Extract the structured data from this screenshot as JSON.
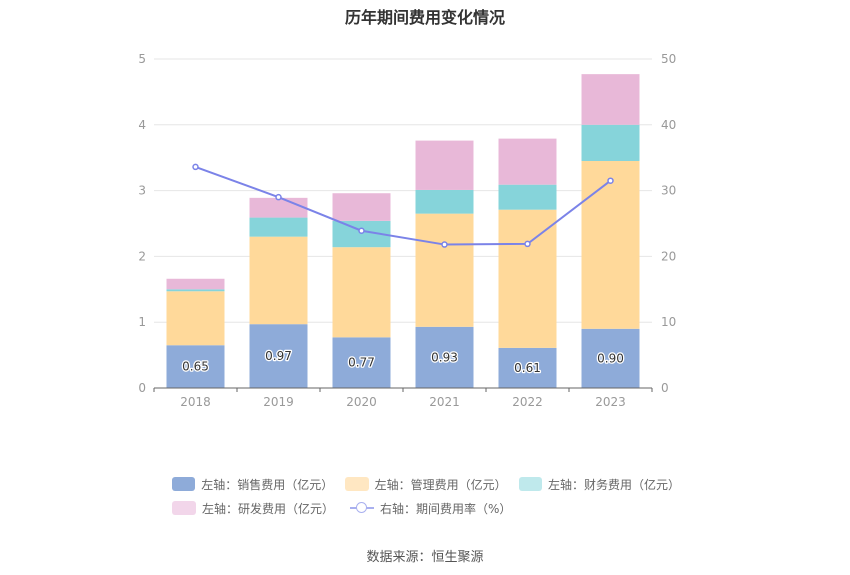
{
  "chart_data": {
    "type": "bar",
    "stacked": true,
    "title": "历年期间费用变化情况",
    "categories": [
      "2018",
      "2019",
      "2020",
      "2021",
      "2022",
      "2023"
    ],
    "left_axis": {
      "min": 0,
      "max": 5,
      "ticks": [
        "0",
        "1",
        "2",
        "3",
        "4",
        "5"
      ]
    },
    "right_axis": {
      "min": 0,
      "max": 50,
      "ticks": [
        "0",
        "10",
        "20",
        "30",
        "40",
        "50"
      ]
    },
    "series": [
      {
        "name": "左轴：销售费用（亿元）",
        "axis": "left",
        "color": "#8eabd9",
        "values": [
          0.65,
          0.97,
          0.77,
          0.93,
          0.61,
          0.9
        ],
        "labels": [
          "0.65",
          "0.97",
          "0.77",
          "0.93",
          "0.61",
          "0.90"
        ]
      },
      {
        "name": "左轴：管理费用（亿元）",
        "axis": "left",
        "color": "#ffd99a",
        "values": [
          0.82,
          1.33,
          1.37,
          1.72,
          2.1,
          2.55
        ]
      },
      {
        "name": "左轴：财务费用（亿元）",
        "axis": "left",
        "color": "#86d4da",
        "values": [
          0.03,
          0.29,
          0.4,
          0.36,
          0.38,
          0.55
        ]
      },
      {
        "name": "左轴：研发费用（亿元）",
        "axis": "left",
        "color": "#e8b8d8",
        "values": [
          0.16,
          0.3,
          0.42,
          0.75,
          0.7,
          0.77
        ]
      },
      {
        "name": "右轴：期间费用率（%）",
        "axis": "right",
        "type": "line",
        "color": "#7b83e8",
        "values": [
          33.6,
          29.0,
          23.9,
          21.8,
          21.9,
          31.5
        ]
      }
    ],
    "legend_position": "bottom",
    "grid": true
  },
  "legend": {
    "row1": [
      "左轴：销售费用（亿元）",
      "左轴：管理费用（亿元）",
      "左轴：财务费用（亿元）"
    ],
    "row2": [
      "左轴：研发费用（亿元）",
      "右轴：期间费用率（%）"
    ],
    "colors": [
      "#8eabd9",
      "#ffe7c2",
      "#bfe9ec",
      "#f2d6ea"
    ]
  },
  "source": "数据来源：恒生聚源"
}
